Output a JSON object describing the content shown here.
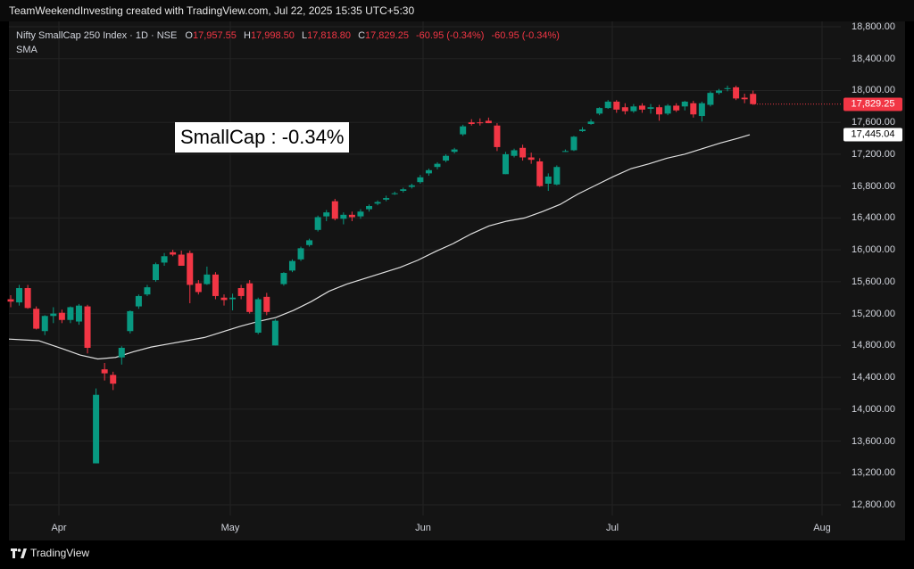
{
  "header": {
    "text": "TeamWeekendInvesting created with TradingView.com, Jul 22, 2025 15:35 UTC+5:30"
  },
  "legend": {
    "symbol": "Nifty SmallCap 250 Index · 1D · NSE",
    "o_label": "O",
    "o_value": "17,957.55",
    "h_label": "H",
    "h_value": "17,998.50",
    "l_label": "L",
    "l_value": "17,818.80",
    "c_label": "C",
    "c_value": "17,829.25",
    "change1": "-60.95 (-0.34%)",
    "change2": "-60.95 (-0.34%)",
    "sma": "SMA"
  },
  "annotation": "SmallCap : -0.34%",
  "last_price_badge": "17,829.25",
  "sma_badge": "17,445.04",
  "footer": {
    "logo_text": "TradingView"
  },
  "colors": {
    "up": "#089981",
    "down": "#f23645",
    "sma": "#e0e0e0",
    "background": "#141414",
    "grid": "#232323"
  },
  "chart_data": {
    "type": "candlestick",
    "ylim": [
      12600,
      18900
    ],
    "yticks": [
      "18,800.00",
      "18,400.00",
      "18,000.00",
      "17,600.00",
      "17,200.00",
      "16,800.00",
      "16,400.00",
      "16,000.00",
      "15,600.00",
      "15,200.00",
      "14,800.00",
      "14,400.00",
      "14,000.00",
      "13,600.00",
      "13,200.00",
      "12,800.00"
    ],
    "ytick_values": [
      18800,
      18400,
      18000,
      17600,
      17200,
      16800,
      16400,
      16000,
      15600,
      15200,
      14800,
      14400,
      14000,
      13600,
      13200,
      12800
    ],
    "xticks": [
      "Apr",
      "May",
      "Jun",
      "Jul",
      "Aug"
    ],
    "xtick_index": [
      6.5,
      30.5,
      56.5,
      82.5,
      111.5
    ],
    "index_range": [
      -0.5,
      115.5
    ],
    "candles": [
      {
        "o": 15380,
        "h": 15430,
        "l": 15280,
        "c": 15350
      },
      {
        "o": 15340,
        "h": 15560,
        "l": 15300,
        "c": 15520
      },
      {
        "o": 15520,
        "h": 15560,
        "l": 15260,
        "c": 15270
      },
      {
        "o": 15260,
        "h": 15290,
        "l": 15000,
        "c": 15010
      },
      {
        "o": 14980,
        "h": 15180,
        "l": 14930,
        "c": 15170
      },
      {
        "o": 15170,
        "h": 15280,
        "l": 15080,
        "c": 15200
      },
      {
        "o": 15210,
        "h": 15250,
        "l": 15080,
        "c": 15120
      },
      {
        "o": 15120,
        "h": 15290,
        "l": 15080,
        "c": 15280
      },
      {
        "o": 15100,
        "h": 15320,
        "l": 15060,
        "c": 15300
      },
      {
        "o": 15290,
        "h": 15310,
        "l": 14700,
        "c": 14770
      },
      {
        "o": 13320,
        "h": 14260,
        "l": 13320,
        "c": 14180
      },
      {
        "o": 14500,
        "h": 14580,
        "l": 14360,
        "c": 14450
      },
      {
        "o": 14430,
        "h": 14470,
        "l": 14240,
        "c": 14320
      },
      {
        "o": 14650,
        "h": 14790,
        "l": 14560,
        "c": 14770
      },
      {
        "o": 14980,
        "h": 15240,
        "l": 14950,
        "c": 15230
      },
      {
        "o": 15290,
        "h": 15440,
        "l": 15260,
        "c": 15420
      },
      {
        "o": 15440,
        "h": 15560,
        "l": 15420,
        "c": 15530
      },
      {
        "o": 15620,
        "h": 15840,
        "l": 15600,
        "c": 15820
      },
      {
        "o": 15840,
        "h": 15960,
        "l": 15800,
        "c": 15920
      },
      {
        "o": 15970,
        "h": 16000,
        "l": 15920,
        "c": 15940
      },
      {
        "o": 15940,
        "h": 15990,
        "l": 15800,
        "c": 15800
      },
      {
        "o": 15960,
        "h": 15990,
        "l": 15330,
        "c": 15560
      },
      {
        "o": 15580,
        "h": 15620,
        "l": 15440,
        "c": 15470
      },
      {
        "o": 15570,
        "h": 15790,
        "l": 15560,
        "c": 15690
      },
      {
        "o": 15690,
        "h": 15720,
        "l": 15380,
        "c": 15420
      },
      {
        "o": 15400,
        "h": 15440,
        "l": 15300,
        "c": 15370
      },
      {
        "o": 15380,
        "h": 15450,
        "l": 15240,
        "c": 15400
      },
      {
        "o": 15520,
        "h": 15560,
        "l": 15380,
        "c": 15420
      },
      {
        "o": 15580,
        "h": 15620,
        "l": 15200,
        "c": 15220
      },
      {
        "o": 14960,
        "h": 15400,
        "l": 14940,
        "c": 15380
      },
      {
        "o": 15410,
        "h": 15460,
        "l": 15180,
        "c": 15220
      },
      {
        "o": 14800,
        "h": 15130,
        "l": 14800,
        "c": 15110
      },
      {
        "o": 15570,
        "h": 15720,
        "l": 15550,
        "c": 15710
      },
      {
        "o": 15740,
        "h": 15880,
        "l": 15720,
        "c": 15860
      },
      {
        "o": 15880,
        "h": 16040,
        "l": 15860,
        "c": 16020
      },
      {
        "o": 16060,
        "h": 16140,
        "l": 16040,
        "c": 16120
      },
      {
        "o": 16250,
        "h": 16430,
        "l": 16230,
        "c": 16410
      },
      {
        "o": 16420,
        "h": 16500,
        "l": 16360,
        "c": 16470
      },
      {
        "o": 16610,
        "h": 16640,
        "l": 16370,
        "c": 16390
      },
      {
        "o": 16390,
        "h": 16470,
        "l": 16320,
        "c": 16440
      },
      {
        "o": 16440,
        "h": 16480,
        "l": 16360,
        "c": 16410
      },
      {
        "o": 16420,
        "h": 16510,
        "l": 16390,
        "c": 16480
      },
      {
        "o": 16510,
        "h": 16570,
        "l": 16480,
        "c": 16550
      },
      {
        "o": 16580,
        "h": 16620,
        "l": 16560,
        "c": 16600
      },
      {
        "o": 16630,
        "h": 16680,
        "l": 16610,
        "c": 16650
      },
      {
        "o": 16700,
        "h": 16730,
        "l": 16690,
        "c": 16710
      },
      {
        "o": 16740,
        "h": 16780,
        "l": 16720,
        "c": 16760
      },
      {
        "o": 16790,
        "h": 16830,
        "l": 16770,
        "c": 16810
      },
      {
        "o": 16850,
        "h": 16940,
        "l": 16830,
        "c": 16910
      },
      {
        "o": 16960,
        "h": 17020,
        "l": 16930,
        "c": 17000
      },
      {
        "o": 17040,
        "h": 17100,
        "l": 17010,
        "c": 17080
      },
      {
        "o": 17120,
        "h": 17200,
        "l": 17100,
        "c": 17180
      },
      {
        "o": 17230,
        "h": 17280,
        "l": 17210,
        "c": 17260
      },
      {
        "o": 17450,
        "h": 17570,
        "l": 17430,
        "c": 17550
      },
      {
        "o": 17600,
        "h": 17640,
        "l": 17560,
        "c": 17580
      },
      {
        "o": 17600,
        "h": 17650,
        "l": 17560,
        "c": 17590
      },
      {
        "o": 17620,
        "h": 17660,
        "l": 17590,
        "c": 17590
      },
      {
        "o": 17560,
        "h": 17590,
        "l": 17240,
        "c": 17290
      },
      {
        "o": 16950,
        "h": 17230,
        "l": 16950,
        "c": 17200
      },
      {
        "o": 17180,
        "h": 17270,
        "l": 17160,
        "c": 17250
      },
      {
        "o": 17280,
        "h": 17320,
        "l": 17120,
        "c": 17160
      },
      {
        "o": 17160,
        "h": 17220,
        "l": 17080,
        "c": 17130
      },
      {
        "o": 17110,
        "h": 17150,
        "l": 16790,
        "c": 16800
      },
      {
        "o": 16830,
        "h": 16960,
        "l": 16740,
        "c": 16920
      },
      {
        "o": 16820,
        "h": 17060,
        "l": 16810,
        "c": 17040
      },
      {
        "o": 17230,
        "h": 17260,
        "l": 17230,
        "c": 17240
      },
      {
        "o": 17250,
        "h": 17430,
        "l": 17240,
        "c": 17420
      },
      {
        "o": 17490,
        "h": 17540,
        "l": 17480,
        "c": 17510
      },
      {
        "o": 17580,
        "h": 17640,
        "l": 17570,
        "c": 17610
      },
      {
        "o": 17710,
        "h": 17790,
        "l": 17690,
        "c": 17780
      },
      {
        "o": 17780,
        "h": 17880,
        "l": 17770,
        "c": 17860
      },
      {
        "o": 17860,
        "h": 17880,
        "l": 17720,
        "c": 17760
      },
      {
        "o": 17790,
        "h": 17840,
        "l": 17700,
        "c": 17740
      },
      {
        "o": 17740,
        "h": 17830,
        "l": 17720,
        "c": 17800
      },
      {
        "o": 17810,
        "h": 17840,
        "l": 17720,
        "c": 17760
      },
      {
        "o": 17770,
        "h": 17830,
        "l": 17710,
        "c": 17790
      },
      {
        "o": 17790,
        "h": 17820,
        "l": 17620,
        "c": 17700
      },
      {
        "o": 17710,
        "h": 17830,
        "l": 17690,
        "c": 17810
      },
      {
        "o": 17810,
        "h": 17840,
        "l": 17730,
        "c": 17750
      },
      {
        "o": 17800,
        "h": 17870,
        "l": 17750,
        "c": 17860
      },
      {
        "o": 17840,
        "h": 17870,
        "l": 17660,
        "c": 17700
      },
      {
        "o": 17680,
        "h": 17860,
        "l": 17610,
        "c": 17840
      },
      {
        "o": 17820,
        "h": 17990,
        "l": 17800,
        "c": 17970
      },
      {
        "o": 17970,
        "h": 18020,
        "l": 17950,
        "c": 18000
      },
      {
        "o": 18020,
        "h": 18060,
        "l": 17990,
        "c": 18030
      },
      {
        "o": 18040,
        "h": 18060,
        "l": 17880,
        "c": 17900
      },
      {
        "o": 17910,
        "h": 17960,
        "l": 17840,
        "c": 17890
      },
      {
        "o": 17957.55,
        "h": 17998.5,
        "l": 17818.8,
        "c": 17829.25
      }
    ],
    "candle_positions": [
      0,
      2,
      4,
      6,
      8,
      10,
      12,
      14,
      16,
      18,
      20,
      22,
      24,
      26,
      28,
      30,
      32,
      34,
      36,
      38,
      40,
      42,
      44,
      46,
      48,
      50,
      52,
      54,
      56,
      58,
      60,
      62,
      64,
      66,
      68,
      70,
      72,
      74,
      76,
      78,
      80,
      82,
      84,
      86,
      88,
      90,
      92,
      94,
      96,
      98,
      100,
      102,
      104,
      106,
      108,
      110,
      112,
      114,
      116,
      118,
      120,
      122,
      124,
      126,
      128,
      130,
      132,
      134,
      136,
      138,
      140,
      142,
      144,
      146,
      148,
      150,
      152,
      154,
      156,
      158,
      160,
      162,
      164,
      166,
      168,
      170,
      172,
      174
    ],
    "sma": {
      "name": "SMA",
      "points": [
        [
          0,
          14880
        ],
        [
          10,
          14860
        ],
        [
          18,
          14760
        ],
        [
          24,
          14680
        ],
        [
          30,
          14630
        ],
        [
          36,
          14650
        ],
        [
          42,
          14720
        ],
        [
          48,
          14780
        ],
        [
          54,
          14820
        ],
        [
          60,
          14860
        ],
        [
          66,
          14900
        ],
        [
          72,
          14970
        ],
        [
          78,
          15040
        ],
        [
          84,
          15100
        ],
        [
          90,
          15150
        ],
        [
          96,
          15240
        ],
        [
          102,
          15350
        ],
        [
          108,
          15480
        ],
        [
          114,
          15570
        ],
        [
          120,
          15640
        ],
        [
          126,
          15710
        ],
        [
          132,
          15780
        ],
        [
          138,
          15870
        ],
        [
          144,
          15980
        ],
        [
          150,
          16080
        ],
        [
          156,
          16200
        ],
        [
          162,
          16300
        ],
        [
          168,
          16360
        ],
        [
          174,
          16400
        ],
        [
          180,
          16480
        ],
        [
          186,
          16570
        ],
        [
          192,
          16700
        ],
        [
          198,
          16810
        ],
        [
          204,
          16920
        ],
        [
          210,
          17020
        ],
        [
          216,
          17080
        ],
        [
          222,
          17150
        ],
        [
          228,
          17200
        ],
        [
          234,
          17270
        ],
        [
          240,
          17340
        ],
        [
          246,
          17400
        ],
        [
          250,
          17445.04
        ]
      ]
    }
  }
}
